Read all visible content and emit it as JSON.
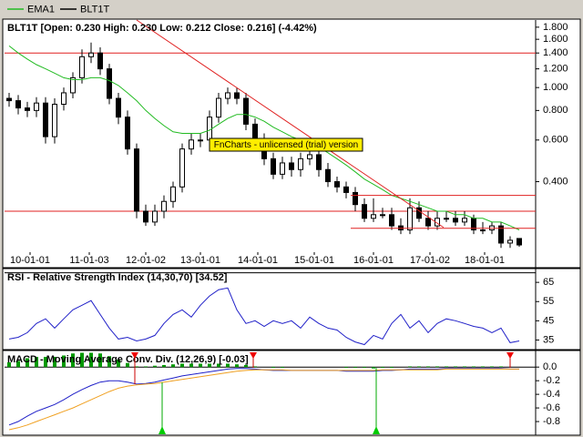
{
  "chart_data": [
    {
      "type": "candlestick",
      "title": "BLT1T [Open: 0.230  High: 0.230  Low: 0.212  Close: 0.216] (-4.42%)",
      "watermark": "FnCharts - unlicensed (trial) version",
      "log_scale": true,
      "xlim": [
        -0.5,
        57.8
      ],
      "ylim": [
        0.196,
        1.93
      ],
      "xticks": [
        {
          "value": 2.3,
          "label": "10-01-01"
        },
        {
          "value": 8.8,
          "label": "11-01-03"
        },
        {
          "value": 15,
          "label": "12-01-02"
        },
        {
          "value": 21,
          "label": "13-01-01"
        },
        {
          "value": 27.3,
          "label": "14-01-01"
        },
        {
          "value": 33.5,
          "label": "15-01-01"
        },
        {
          "value": 40,
          "label": "16-01-01"
        },
        {
          "value": 46.2,
          "label": "17-01-02"
        },
        {
          "value": 52.2,
          "label": "18-01-01"
        }
      ],
      "yticks": [
        {
          "value": 1.8,
          "label": "1.800"
        },
        {
          "value": 1.6,
          "label": "1.600"
        },
        {
          "value": 1.4,
          "label": "1.400"
        },
        {
          "value": 1.2,
          "label": "1.200"
        },
        {
          "value": 1.0,
          "label": "1.000"
        },
        {
          "value": 0.8,
          "label": "0.800"
        },
        {
          "value": 0.6,
          "label": "0.600"
        },
        {
          "value": 0.4,
          "label": "0.400"
        }
      ],
      "x": [
        0,
        1,
        2,
        3,
        4,
        5,
        6,
        7,
        8,
        9,
        10,
        11,
        12,
        13,
        14,
        15,
        16,
        17,
        18,
        19,
        20,
        21,
        22,
        23,
        24,
        25,
        26,
        27,
        28,
        29,
        30,
        31,
        32,
        33,
        34,
        35,
        36,
        37,
        38,
        39,
        40,
        41,
        42,
        43,
        44,
        45,
        46,
        47,
        48,
        49,
        50,
        51,
        52,
        53,
        54,
        55,
        56
      ],
      "candles": {
        "name": "BLT1T",
        "color": "#000000",
        "open": [
          0.9,
          0.88,
          0.82,
          0.8,
          0.86,
          0.62,
          0.85,
          0.95,
          1.1,
          1.35,
          1.4,
          1.2,
          0.9,
          0.75,
          0.55,
          0.3,
          0.27,
          0.3,
          0.33,
          0.38,
          0.55,
          0.6,
          0.6,
          0.75,
          0.9,
          0.95,
          0.9,
          0.7,
          0.6,
          0.5,
          0.43,
          0.48,
          0.45,
          0.5,
          0.52,
          0.45,
          0.4,
          0.38,
          0.36,
          0.32,
          0.28,
          0.29,
          0.29,
          0.26,
          0.25,
          0.31,
          0.28,
          0.26,
          0.28,
          0.28,
          0.27,
          0.28,
          0.25,
          0.25,
          0.26,
          0.22,
          0.23
        ],
        "high": [
          0.95,
          0.93,
          0.87,
          0.91,
          0.91,
          0.9,
          1.0,
          1.16,
          1.45,
          1.55,
          1.48,
          1.26,
          0.95,
          0.8,
          0.58,
          0.32,
          0.32,
          0.35,
          0.4,
          0.58,
          0.64,
          0.64,
          0.8,
          0.95,
          1.0,
          1.0,
          0.95,
          0.74,
          0.64,
          0.53,
          0.51,
          0.51,
          0.53,
          0.55,
          0.55,
          0.48,
          0.42,
          0.4,
          0.38,
          0.34,
          0.34,
          0.31,
          0.31,
          0.28,
          0.34,
          0.33,
          0.3,
          0.3,
          0.3,
          0.3,
          0.3,
          0.29,
          0.27,
          0.27,
          0.27,
          0.235,
          0.23
        ],
        "low": [
          0.83,
          0.77,
          0.75,
          0.75,
          0.58,
          0.58,
          0.8,
          0.9,
          1.04,
          1.27,
          1.13,
          0.85,
          0.7,
          0.52,
          0.28,
          0.26,
          0.26,
          0.28,
          0.31,
          0.36,
          0.52,
          0.56,
          0.56,
          0.71,
          0.85,
          0.85,
          0.66,
          0.56,
          0.47,
          0.41,
          0.41,
          0.42,
          0.42,
          0.47,
          0.42,
          0.38,
          0.36,
          0.34,
          0.3,
          0.27,
          0.27,
          0.28,
          0.25,
          0.24,
          0.24,
          0.27,
          0.25,
          0.25,
          0.27,
          0.26,
          0.26,
          0.24,
          0.24,
          0.24,
          0.21,
          0.21,
          0.212
        ],
        "close": [
          0.88,
          0.82,
          0.8,
          0.86,
          0.62,
          0.85,
          0.95,
          1.1,
          1.35,
          1.4,
          1.2,
          0.9,
          0.75,
          0.55,
          0.3,
          0.27,
          0.3,
          0.33,
          0.38,
          0.55,
          0.6,
          0.6,
          0.75,
          0.9,
          0.95,
          0.9,
          0.7,
          0.6,
          0.5,
          0.43,
          0.48,
          0.45,
          0.5,
          0.52,
          0.45,
          0.4,
          0.38,
          0.36,
          0.32,
          0.28,
          0.29,
          0.29,
          0.26,
          0.25,
          0.31,
          0.28,
          0.26,
          0.28,
          0.28,
          0.27,
          0.28,
          0.25,
          0.25,
          0.26,
          0.22,
          0.226,
          0.216
        ]
      },
      "series": [
        {
          "name": "EMA1",
          "color": "#22bb22",
          "values": [
            1.5,
            1.4,
            1.32,
            1.25,
            1.2,
            1.15,
            1.1,
            1.08,
            1.08,
            1.1,
            1.1,
            1.07,
            1.02,
            0.95,
            0.88,
            0.8,
            0.74,
            0.69,
            0.65,
            0.64,
            0.64,
            0.64,
            0.66,
            0.7,
            0.74,
            0.77,
            0.77,
            0.75,
            0.72,
            0.68,
            0.65,
            0.62,
            0.6,
            0.58,
            0.56,
            0.53,
            0.5,
            0.47,
            0.44,
            0.41,
            0.39,
            0.37,
            0.35,
            0.34,
            0.33,
            0.32,
            0.31,
            0.3,
            0.3,
            0.29,
            0.29,
            0.28,
            0.28,
            0.27,
            0.27,
            0.26,
            0.25
          ]
        }
      ],
      "line_color": "#e02020",
      "hlines": [
        1.4,
        0.3
      ],
      "segments": [
        {
          "x": [
            37.5,
            57.8
          ],
          "y": [
            0.35,
            0.35
          ]
        },
        {
          "x": [
            37.5,
            57.8
          ],
          "y": [
            0.254,
            0.254
          ]
        },
        {
          "x": [
            14,
            47.7
          ],
          "y": [
            1.93,
            0.256
          ]
        }
      ]
    },
    {
      "type": "line",
      "title": "RSI - Relative Strength Index (14,30,70) [34.52]",
      "xlim": [
        -0.5,
        57.8
      ],
      "ylim": [
        30,
        71.7
      ],
      "yticks": [
        65,
        55,
        45,
        35
      ],
      "levels": [
        30,
        70
      ],
      "x": [
        0,
        1,
        2,
        3,
        4,
        5,
        6,
        7,
        8,
        9,
        10,
        11,
        12,
        13,
        14,
        15,
        16,
        17,
        18,
        19,
        20,
        21,
        22,
        23,
        24,
        25,
        26,
        27,
        28,
        29,
        30,
        31,
        32,
        33,
        34,
        35,
        36,
        37,
        38,
        39,
        40,
        41,
        42,
        43,
        44,
        45,
        46,
        47,
        48,
        49,
        50,
        51,
        52,
        53,
        54,
        55,
        56
      ],
      "series": [
        {
          "color": "#2020c8",
          "values": [
            35.5,
            36.4,
            38.8,
            43.6,
            46,
            41.2,
            46,
            50.7,
            53.1,
            55.5,
            48.3,
            41.2,
            35.5,
            36.4,
            34.5,
            35.5,
            37.4,
            43.6,
            48.3,
            50.7,
            46.9,
            53.1,
            57.9,
            61.2,
            62.1,
            50.7,
            43.6,
            45,
            42.1,
            45,
            43.6,
            45,
            41.2,
            46.9,
            43.6,
            41.2,
            40.2,
            36.4,
            34,
            32.6,
            37.4,
            35.5,
            43.6,
            48.3,
            41.2,
            45,
            38.8,
            43.6,
            46,
            45,
            43.6,
            42.1,
            41.2,
            38.8,
            41.2,
            33.6,
            34.52
          ]
        }
      ]
    },
    {
      "type": "macd",
      "title": "MACD - Moving Average Conv. Div. (12,26,9) [-0.03]",
      "xlim": [
        -0.5,
        57.8
      ],
      "ylim": [
        -1.0,
        0.23
      ],
      "yticks": [
        {
          "value": 0,
          "label": "0.0"
        },
        -0.2,
        -0.4,
        -0.6,
        -0.8
      ],
      "levels": [
        0
      ],
      "x": [
        0,
        1,
        2,
        3,
        4,
        5,
        6,
        7,
        8,
        9,
        10,
        11,
        12,
        13,
        14,
        15,
        16,
        17,
        18,
        19,
        20,
        21,
        22,
        23,
        24,
        25,
        26,
        27,
        28,
        29,
        30,
        31,
        32,
        33,
        34,
        35,
        36,
        37,
        38,
        39,
        40,
        41,
        42,
        43,
        44,
        45,
        46,
        47,
        48,
        49,
        50,
        51,
        52,
        53,
        54,
        55,
        56
      ],
      "histogram": {
        "color": "#009900",
        "values": [
          0.07,
          0.09,
          0.13,
          0.15,
          0.15,
          0.15,
          0.17,
          0.2,
          0.21,
          0.21,
          0.2,
          0.16,
          0.11,
          0.06,
          0.01,
          0.01,
          0.02,
          0.03,
          0.04,
          0.05,
          0.05,
          0.05,
          0.05,
          0.05,
          0.05,
          0.04,
          0.03,
          0.01,
          0,
          -0.01,
          -0.01,
          0,
          0,
          0,
          0,
          0,
          0,
          -0.01,
          -0.01,
          -0.01,
          -0.02,
          -0.01,
          -0.01,
          0,
          0.01,
          0.01,
          0.01,
          0.01,
          0.01,
          0.01,
          0.01,
          0.01,
          0.01,
          0.01,
          0.01,
          0,
          0
        ]
      },
      "series": [
        {
          "color": "#2020c8",
          "values": [
            -0.85,
            -0.8,
            -0.72,
            -0.65,
            -0.6,
            -0.55,
            -0.48,
            -0.4,
            -0.33,
            -0.27,
            -0.22,
            -0.2,
            -0.2,
            -0.22,
            -0.25,
            -0.24,
            -0.22,
            -0.19,
            -0.16,
            -0.13,
            -0.11,
            -0.09,
            -0.07,
            -0.05,
            -0.03,
            -0.02,
            -0.02,
            -0.03,
            -0.04,
            -0.05,
            -0.05,
            -0.05,
            -0.05,
            -0.05,
            -0.05,
            -0.05,
            -0.05,
            -0.06,
            -0.06,
            -0.06,
            -0.06,
            -0.05,
            -0.05,
            -0.04,
            -0.03,
            -0.03,
            -0.03,
            -0.03,
            -0.02,
            -0.02,
            -0.02,
            -0.02,
            -0.02,
            -0.02,
            -0.02,
            -0.03,
            -0.03
          ]
        },
        {
          "color": "#f0a020",
          "values": [
            -0.92,
            -0.89,
            -0.85,
            -0.8,
            -0.75,
            -0.7,
            -0.65,
            -0.6,
            -0.54,
            -0.48,
            -0.42,
            -0.36,
            -0.31,
            -0.28,
            -0.26,
            -0.25,
            -0.24,
            -0.22,
            -0.2,
            -0.18,
            -0.16,
            -0.14,
            -0.12,
            -0.1,
            -0.08,
            -0.06,
            -0.05,
            -0.04,
            -0.04,
            -0.04,
            -0.04,
            -0.05,
            -0.05,
            -0.05,
            -0.05,
            -0.05,
            -0.05,
            -0.05,
            -0.05,
            -0.05,
            -0.05,
            -0.04,
            -0.04,
            -0.04,
            -0.04,
            -0.04,
            -0.04,
            -0.04,
            -0.03,
            -0.03,
            -0.03,
            -0.03,
            -0.03,
            -0.03,
            -0.03,
            -0.03,
            -0.03
          ]
        }
      ]
    }
  ]
}
